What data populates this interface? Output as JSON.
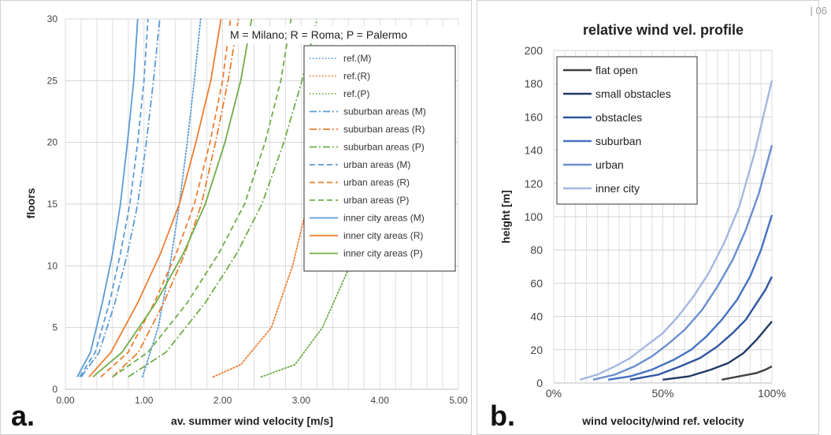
{
  "page_number": "| 06",
  "colors": {
    "blue": "#5b9bd5",
    "orange": "#ed7d31",
    "green": "#70ad47",
    "dark": "#404040",
    "navy": "#2f4f8f"
  },
  "chart_data": [
    {
      "type": "line",
      "panel_letter": "a.",
      "annotation": "M = Milano; R = Roma; P = Palermo",
      "xlabel": "av. summer wind velocity [m/s]",
      "ylabel": "floors",
      "xlim": [
        0,
        5
      ],
      "ylim": [
        0,
        30
      ],
      "x_ticks": [
        "0.00",
        "1.00",
        "2.00",
        "3.00",
        "4.00",
        "5.00"
      ],
      "y_ticks": [
        "0",
        "5",
        "10",
        "15",
        "20",
        "25",
        "30"
      ],
      "grid": true,
      "legend_position": "right",
      "series": [
        {
          "name": "ref.(M)",
          "color": "#5b9bd5",
          "dash": "dotted",
          "x": [
            0.98,
            1.18,
            1.33,
            1.45,
            1.55,
            1.64,
            1.72
          ],
          "y": [
            1,
            5,
            10,
            15,
            20,
            25,
            30
          ]
        },
        {
          "name": "ref.(R)",
          "color": "#ed7d31",
          "dash": "dotted",
          "x": [
            1.88,
            2.23,
            2.62,
            2.89,
            3.08,
            3.23,
            3.37
          ],
          "y": [
            1,
            2,
            5,
            10,
            15,
            20,
            25
          ]
        },
        {
          "name": "ref.(P)",
          "color": "#70ad47",
          "dash": "dotted",
          "x": [
            2.49,
            2.92,
            3.27,
            3.62,
            3.9,
            4.13,
            4.32
          ],
          "y": [
            1,
            2,
            5,
            10,
            15,
            20,
            25
          ]
        },
        {
          "name": "suburban areas (M)",
          "color": "#5b9bd5",
          "dash": "dashdot",
          "x": [
            0.2,
            0.43,
            0.63,
            0.79,
            0.92,
            1.03,
            1.12,
            1.2
          ],
          "y": [
            1,
            3,
            7,
            11,
            15,
            20,
            25,
            30
          ]
        },
        {
          "name": "suburban areas (R)",
          "color": "#ed7d31",
          "dash": "dashdot",
          "x": [
            0.6,
            0.93,
            1.25,
            1.52,
            1.73,
            1.91,
            2.07,
            2.2
          ],
          "y": [
            1,
            3,
            7,
            11,
            15,
            20,
            25,
            30
          ]
        },
        {
          "name": "suburban areas (P)",
          "color": "#70ad47",
          "dash": "dashdot",
          "x": [
            0.8,
            1.28,
            1.78,
            2.18,
            2.5,
            2.78,
            3.01,
            3.2
          ],
          "y": [
            1,
            3,
            7,
            11,
            15,
            20,
            25,
            30
          ]
        },
        {
          "name": "urban areas (M)",
          "color": "#5b9bd5",
          "dash": "dashed",
          "x": [
            0.18,
            0.38,
            0.56,
            0.7,
            0.82,
            0.92,
            1.0,
            1.05
          ],
          "y": [
            1,
            3,
            7,
            11,
            15,
            20,
            25,
            30
          ]
        },
        {
          "name": "urban areas (R)",
          "color": "#ed7d31",
          "dash": "dashed",
          "x": [
            0.45,
            0.8,
            1.13,
            1.41,
            1.64,
            1.84,
            2.0,
            2.1
          ],
          "y": [
            1,
            3,
            7,
            11,
            15,
            20,
            25,
            30
          ]
        },
        {
          "name": "urban areas (P)",
          "color": "#70ad47",
          "dash": "dashed",
          "x": [
            0.6,
            1.05,
            1.55,
            1.95,
            2.28,
            2.54,
            2.74,
            2.87
          ],
          "y": [
            1,
            3,
            7,
            11,
            15,
            20,
            25,
            30
          ]
        },
        {
          "name": "inner city areas (M)",
          "color": "#5b9bd5",
          "dash": "solid",
          "x": [
            0.15,
            0.32,
            0.47,
            0.6,
            0.7,
            0.79,
            0.87,
            0.92
          ],
          "y": [
            1,
            3,
            7,
            11,
            15,
            20,
            25,
            30
          ]
        },
        {
          "name": "inner city areas (R)",
          "color": "#ed7d31",
          "dash": "solid",
          "x": [
            0.3,
            0.58,
            0.92,
            1.21,
            1.45,
            1.66,
            1.85,
            1.98
          ],
          "y": [
            1,
            3,
            7,
            11,
            15,
            20,
            25,
            30
          ]
        },
        {
          "name": "inner city areas (P)",
          "color": "#70ad47",
          "dash": "solid",
          "x": [
            0.35,
            0.72,
            1.15,
            1.5,
            1.78,
            2.03,
            2.23,
            2.37
          ],
          "y": [
            1,
            3,
            7,
            11,
            15,
            20,
            25,
            30
          ]
        }
      ]
    },
    {
      "type": "line",
      "panel_letter": "b.",
      "title": "relative wind vel. profile",
      "xlabel": "wind velocity/wind ref. velocity",
      "ylabel": "height [m]",
      "xlim": [
        0,
        100
      ],
      "ylim": [
        0,
        200
      ],
      "x_ticks": [
        "0%",
        "50%",
        "100%"
      ],
      "y_ticks": [
        "0",
        "20",
        "40",
        "60",
        "80",
        "100",
        "120",
        "140",
        "160",
        "180",
        "200"
      ],
      "grid": true,
      "legend_position": "top-left",
      "series": [
        {
          "name": "flat open",
          "color": "#404040",
          "x": [
            77,
            85,
            93,
            97,
            100
          ],
          "y": [
            2,
            4,
            6,
            8,
            10
          ]
        },
        {
          "name": "small obstacles",
          "color": "#203864",
          "x": [
            50,
            62,
            72,
            80,
            87,
            93,
            100
          ],
          "y": [
            2,
            4,
            8,
            12,
            18,
            26,
            37
          ]
        },
        {
          "name": "obstacles",
          "color": "#2e55a0",
          "x": [
            35,
            48,
            58,
            67,
            75,
            82,
            88,
            93,
            97,
            100
          ],
          "y": [
            2,
            5,
            10,
            15,
            22,
            30,
            38,
            48,
            56,
            64
          ]
        },
        {
          "name": "suburban",
          "color": "#4472c4",
          "x": [
            25,
            35,
            45,
            55,
            63,
            70,
            77,
            84,
            90,
            95,
            100
          ],
          "y": [
            2,
            4,
            8,
            14,
            20,
            28,
            38,
            50,
            64,
            80,
            101
          ]
        },
        {
          "name": "urban",
          "color": "#6a8fd0",
          "x": [
            18,
            28,
            37,
            45,
            52,
            60,
            68,
            75,
            82,
            88,
            94,
            100
          ],
          "y": [
            2,
            5,
            10,
            16,
            23,
            32,
            44,
            58,
            74,
            92,
            114,
            143
          ]
        },
        {
          "name": "inner city",
          "color": "#a4b7e0",
          "x": [
            12,
            20,
            28,
            35,
            42,
            50,
            57,
            64,
            71,
            78,
            85,
            92,
            100
          ],
          "y": [
            2,
            5,
            10,
            15,
            22,
            30,
            40,
            52,
            66,
            84,
            106,
            138,
            182
          ]
        }
      ]
    }
  ]
}
